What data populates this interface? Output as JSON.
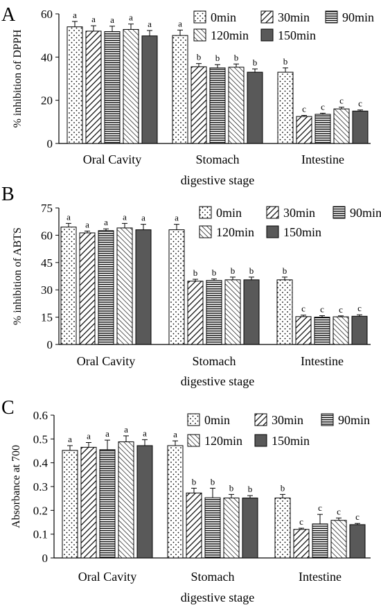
{
  "chart_data": [
    {
      "type": "bar",
      "panel_label": "A",
      "categories": [
        "Oral Cavity",
        "Stomach",
        "Intestine"
      ],
      "xlabel": "digestive stage",
      "ylabel": "% inhibition of DPPH",
      "ylim": [
        0,
        60
      ],
      "yticks": [
        0,
        20,
        40,
        60
      ],
      "legend_position": "top-right",
      "series": [
        {
          "name": "0min",
          "pattern": "dots",
          "values": [
            54.0,
            50.0,
            33.0
          ],
          "errors": [
            2.5,
            2.5,
            2.0
          ],
          "labels": [
            "a",
            "a",
            "b"
          ]
        },
        {
          "name": "30min",
          "pattern": "diag",
          "values": [
            52.0,
            35.5,
            12.5
          ],
          "errors": [
            2.5,
            1.5,
            0.5
          ],
          "labels": [
            "a",
            "b",
            "c"
          ]
        },
        {
          "name": "90min",
          "pattern": "horiz",
          "values": [
            51.8,
            35.0,
            13.5
          ],
          "errors": [
            2.5,
            1.5,
            0.5
          ],
          "labels": [
            "a",
            "b",
            "c"
          ]
        },
        {
          "name": "120min",
          "pattern": "crossdiag",
          "values": [
            52.8,
            35.3,
            16.0
          ],
          "errors": [
            2.5,
            1.5,
            0.8
          ],
          "labels": [
            "a",
            "b",
            "c"
          ]
        },
        {
          "name": "150min",
          "pattern": "solid",
          "values": [
            49.8,
            33.0,
            15.0
          ],
          "errors": [
            2.5,
            1.5,
            0.5
          ],
          "labels": [
            "a",
            "b",
            "c"
          ]
        }
      ]
    },
    {
      "type": "bar",
      "panel_label": "B",
      "categories": [
        "Oral Cavity",
        "Stomach",
        "Intestine"
      ],
      "xlabel": "digestive stage",
      "ylabel": "% inhibition of ABTS",
      "ylim": [
        0,
        75
      ],
      "yticks": [
        0,
        15,
        30,
        45,
        60,
        75
      ],
      "legend_position": "top-right",
      "series": [
        {
          "name": "0min",
          "pattern": "dots",
          "values": [
            64.5,
            63.0,
            35.5
          ],
          "errors": [
            2.0,
            3.0,
            1.5
          ],
          "labels": [
            "a",
            "a",
            "b"
          ]
        },
        {
          "name": "30min",
          "pattern": "diag",
          "values": [
            61.3,
            34.8,
            15.3
          ],
          "errors": [
            1.0,
            1.0,
            0.8
          ],
          "labels": [
            "a",
            "b",
            "c"
          ]
        },
        {
          "name": "90min",
          "pattern": "horiz",
          "values": [
            62.5,
            35.2,
            15.0
          ],
          "errors": [
            1.0,
            0.8,
            0.8
          ],
          "labels": [
            "a",
            "b",
            "c"
          ]
        },
        {
          "name": "120min",
          "pattern": "crossdiag",
          "values": [
            64.0,
            35.5,
            15.2
          ],
          "errors": [
            2.5,
            1.5,
            0.5
          ],
          "labels": [
            "a",
            "b",
            "c"
          ]
        },
        {
          "name": "150min",
          "pattern": "solid",
          "values": [
            63.0,
            35.5,
            15.5
          ],
          "errors": [
            3.0,
            1.5,
            0.8
          ],
          "labels": [
            "a",
            "b",
            "c"
          ]
        }
      ]
    },
    {
      "type": "bar",
      "panel_label": "C",
      "categories": [
        "Oral Cavity",
        "Stomach",
        "Intestine"
      ],
      "xlabel": "digestive stage",
      "ylabel": "Absorbance at 700",
      "ylim": [
        0,
        0.6
      ],
      "yticks": [
        0,
        0.1,
        0.2,
        0.3,
        0.4,
        0.5,
        0.6
      ],
      "legend_position": "top-right",
      "series": [
        {
          "name": "0min",
          "pattern": "dots",
          "values": [
            0.452,
            0.472,
            0.252
          ],
          "errors": [
            0.02,
            0.02,
            0.015
          ],
          "labels": [
            "a",
            "a",
            "b"
          ]
        },
        {
          "name": "30min",
          "pattern": "diag",
          "values": [
            0.465,
            0.273,
            0.12
          ],
          "errors": [
            0.02,
            0.02,
            0.005
          ],
          "labels": [
            "a",
            "b",
            "c"
          ]
        },
        {
          "name": "90min",
          "pattern": "horiz",
          "values": [
            0.455,
            0.253,
            0.143
          ],
          "errors": [
            0.04,
            0.04,
            0.04
          ],
          "labels": [
            "a",
            "b",
            "c"
          ]
        },
        {
          "name": "120min",
          "pattern": "crossdiag",
          "values": [
            0.488,
            0.252,
            0.158
          ],
          "errors": [
            0.025,
            0.015,
            0.01
          ],
          "labels": [
            "a",
            "b",
            "c"
          ]
        },
        {
          "name": "150min",
          "pattern": "solid",
          "values": [
            0.472,
            0.252,
            0.14
          ],
          "errors": [
            0.025,
            0.01,
            0.005
          ],
          "labels": [
            "a",
            "b",
            "c"
          ]
        }
      ]
    }
  ]
}
